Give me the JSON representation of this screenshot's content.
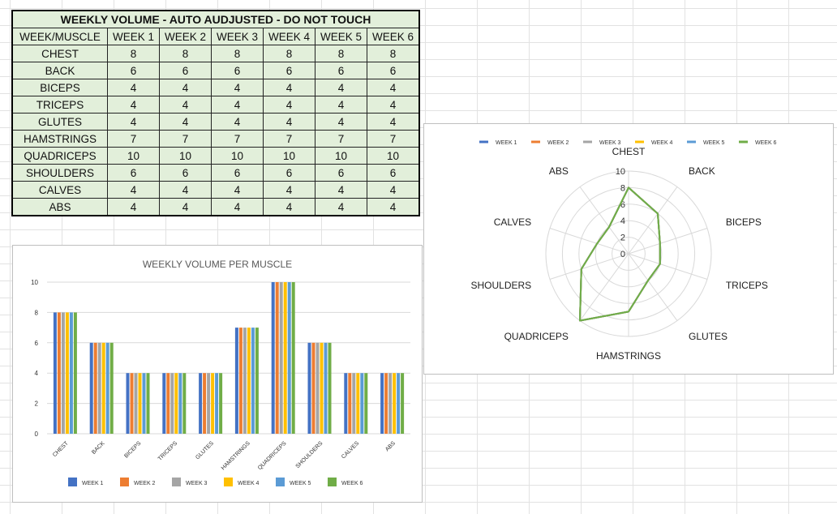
{
  "table": {
    "title": "WEEKLY VOLUME - AUTO AUDJUSTED - DO NOT TOUCH",
    "header": [
      "WEEK/MUSCLE",
      "WEEK 1",
      "WEEK 2",
      "WEEK 3",
      "WEEK 4",
      "WEEK 5",
      "WEEK 6"
    ],
    "rows": [
      {
        "muscle": "CHEST",
        "values": [
          "8",
          "8",
          "8",
          "8",
          "8",
          "8"
        ]
      },
      {
        "muscle": "BACK",
        "values": [
          "6",
          "6",
          "6",
          "6",
          "6",
          "6"
        ]
      },
      {
        "muscle": "BICEPS",
        "values": [
          "4",
          "4",
          "4",
          "4",
          "4",
          "4"
        ]
      },
      {
        "muscle": "TRICEPS",
        "values": [
          "4",
          "4",
          "4",
          "4",
          "4",
          "4"
        ]
      },
      {
        "muscle": "GLUTES",
        "values": [
          "4",
          "4",
          "4",
          "4",
          "4",
          "4"
        ]
      },
      {
        "muscle": "HAMSTRINGS",
        "values": [
          "7",
          "7",
          "7",
          "7",
          "7",
          "7"
        ]
      },
      {
        "muscle": "QUADRICEPS",
        "values": [
          "10",
          "10",
          "10",
          "10",
          "10",
          "10"
        ]
      },
      {
        "muscle": "SHOULDERS",
        "values": [
          "6",
          "6",
          "6",
          "6",
          "6",
          "6"
        ]
      },
      {
        "muscle": "CALVES",
        "values": [
          "4",
          "4",
          "4",
          "4",
          "4",
          "4"
        ]
      },
      {
        "muscle": "ABS",
        "values": [
          "4",
          "4",
          "4",
          "4",
          "4",
          "4"
        ]
      }
    ]
  },
  "chart_data": [
    {
      "type": "bar",
      "title": "WEEKLY VOLUME PER MUSCLE",
      "categories": [
        "CHEST",
        "BACK",
        "BICEPS",
        "TRICEPS",
        "GLUTES",
        "HAMSTRINGS",
        "QUADRICEPS",
        "SHOULDERS",
        "CALVES",
        "ABS"
      ],
      "ylim": [
        0,
        10
      ],
      "yticks": [
        "0",
        "2",
        "4",
        "6",
        "8",
        "10"
      ],
      "grid": true,
      "legend_position": "bottom",
      "series": [
        {
          "name": "WEEK 1",
          "color": "#4472c4",
          "values": [
            8,
            6,
            4,
            4,
            4,
            7,
            10,
            6,
            4,
            4
          ]
        },
        {
          "name": "WEEK 2",
          "color": "#ed7d31",
          "values": [
            8,
            6,
            4,
            4,
            4,
            7,
            10,
            6,
            4,
            4
          ]
        },
        {
          "name": "WEEK 3",
          "color": "#a5a5a5",
          "values": [
            8,
            6,
            4,
            4,
            4,
            7,
            10,
            6,
            4,
            4
          ]
        },
        {
          "name": "WEEK 4",
          "color": "#ffc000",
          "values": [
            8,
            6,
            4,
            4,
            4,
            7,
            10,
            6,
            4,
            4
          ]
        },
        {
          "name": "WEEK 5",
          "color": "#5b9bd5",
          "values": [
            8,
            6,
            4,
            4,
            4,
            7,
            10,
            6,
            4,
            4
          ]
        },
        {
          "name": "WEEK 6",
          "color": "#70ad47",
          "values": [
            8,
            6,
            4,
            4,
            4,
            7,
            10,
            6,
            4,
            4
          ]
        }
      ]
    },
    {
      "type": "radar",
      "categories": [
        "CHEST",
        "BACK",
        "BICEPS",
        "TRICEPS",
        "GLUTES",
        "HAMSTRINGS",
        "QUADRICEPS",
        "SHOULDERS",
        "CALVES",
        "ABS"
      ],
      "rlim": [
        0,
        10
      ],
      "rticks": [
        "0",
        "2",
        "4",
        "6",
        "8",
        "10"
      ],
      "legend_position": "top",
      "series": [
        {
          "name": "WEEK 1",
          "color": "#4472c4",
          "values": [
            8,
            6,
            4,
            4,
            4,
            7,
            10,
            6,
            4,
            4
          ]
        },
        {
          "name": "WEEK 2",
          "color": "#ed7d31",
          "values": [
            8,
            6,
            4,
            4,
            4,
            7,
            10,
            6,
            4,
            4
          ]
        },
        {
          "name": "WEEK 3",
          "color": "#a5a5a5",
          "values": [
            8,
            6,
            4,
            4,
            4,
            7,
            10,
            6,
            4,
            4
          ]
        },
        {
          "name": "WEEK 4",
          "color": "#ffc000",
          "values": [
            8,
            6,
            4,
            4,
            4,
            7,
            10,
            6,
            4,
            4
          ]
        },
        {
          "name": "WEEK 5",
          "color": "#5b9bd5",
          "values": [
            8,
            6,
            4,
            4,
            4,
            7,
            10,
            6,
            4,
            4
          ]
        },
        {
          "name": "WEEK 6",
          "color": "#70ad47",
          "values": [
            8,
            6,
            4,
            4,
            4,
            7,
            10,
            6,
            4,
            4
          ]
        }
      ]
    }
  ]
}
